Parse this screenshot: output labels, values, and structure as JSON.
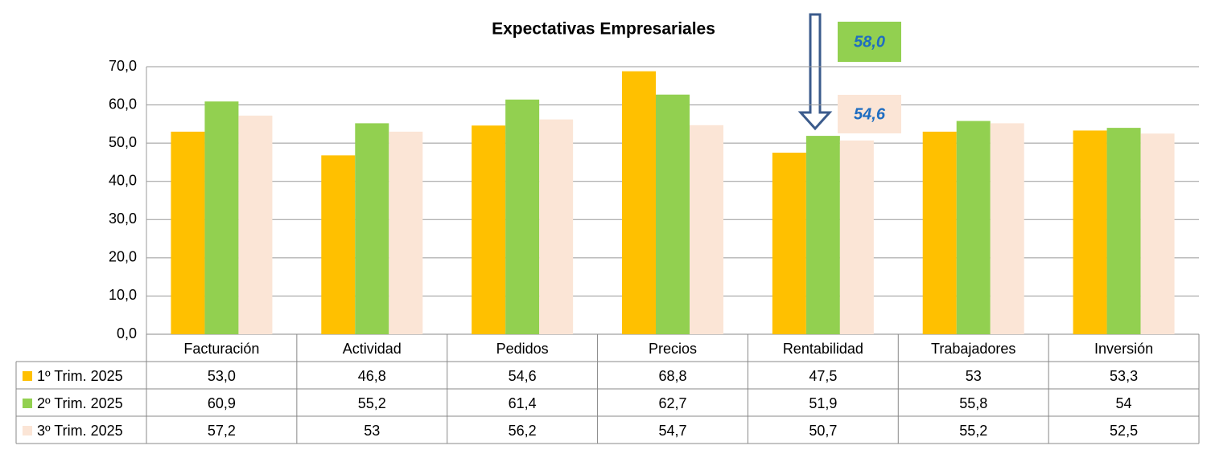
{
  "chart_data": {
    "type": "bar",
    "title": "Expectativas Empresariales",
    "categories": [
      "Facturación",
      "Actividad",
      "Pedidos",
      "Precios",
      "Rentabilidad",
      "Trabajadores",
      "Inversión"
    ],
    "series": [
      {
        "name": "1º Trim. 2025",
        "color": "#ffc000",
        "values": [
          53.0,
          46.8,
          54.6,
          68.8,
          47.5,
          53,
          53.3
        ],
        "value_labels": [
          "53,0",
          "46,8",
          "54,6",
          "68,8",
          "47,5",
          "53",
          "53,3"
        ]
      },
      {
        "name": "2º Trim. 2025",
        "color": "#92d050",
        "values": [
          60.9,
          55.2,
          61.4,
          62.7,
          51.9,
          55.8,
          54
        ],
        "value_labels": [
          "60,9",
          "55,2",
          "61,4",
          "62,7",
          "51,9",
          "55,8",
          "54"
        ]
      },
      {
        "name": "3º Trim. 2025",
        "color": "#fbe5d6",
        "values": [
          57.2,
          53,
          56.2,
          54.7,
          50.7,
          55.2,
          52.5
        ],
        "value_labels": [
          "57,2",
          "53",
          "56,2",
          "54,7",
          "50,7",
          "55,2",
          "52,5"
        ]
      }
    ],
    "ylim": [
      0,
      70
    ],
    "yticks": [
      {
        "value": 0,
        "label": "0,0"
      },
      {
        "value": 10,
        "label": "10,0"
      },
      {
        "value": 20,
        "label": "20,0"
      },
      {
        "value": 30,
        "label": "30,0"
      },
      {
        "value": 40,
        "label": "40,0"
      },
      {
        "value": 50,
        "label": "50,0"
      },
      {
        "value": 60,
        "label": "60,0"
      },
      {
        "value": 70,
        "label": "70,0"
      }
    ],
    "grid": true,
    "annotations": [
      {
        "text": "58,0",
        "color": "#92d050"
      },
      {
        "text": "54,6",
        "color": "#fbe5d6"
      }
    ]
  }
}
